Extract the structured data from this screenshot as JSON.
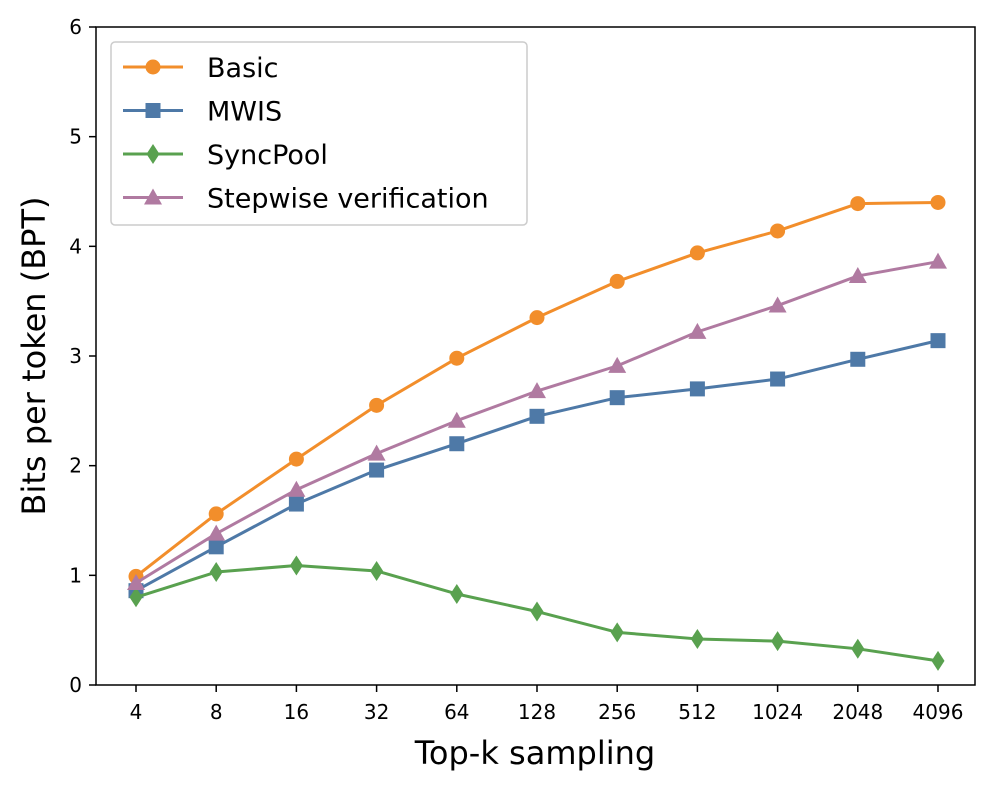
{
  "chart_data": {
    "type": "line",
    "title": "",
    "xlabel": "Top-k sampling",
    "ylabel": "Bits per token (BPT)",
    "categories": [
      "4",
      "8",
      "16",
      "32",
      "64",
      "128",
      "256",
      "512",
      "1024",
      "2048",
      "4096"
    ],
    "yticks": [
      "0",
      "1",
      "2",
      "3",
      "4",
      "5",
      "6"
    ],
    "ylim": [
      0,
      6
    ],
    "grid": false,
    "legend_position": "top-left",
    "series": [
      {
        "name": "Basic",
        "color": "#F28E2B",
        "marker": "circle",
        "values": [
          0.99,
          1.56,
          2.06,
          2.55,
          2.98,
          3.35,
          3.68,
          3.94,
          4.14,
          4.39,
          4.4
        ]
      },
      {
        "name": "MWIS",
        "color": "#4E79A7",
        "marker": "square",
        "values": [
          0.86,
          1.26,
          1.65,
          1.96,
          2.2,
          2.45,
          2.62,
          2.7,
          2.79,
          2.97,
          3.14
        ]
      },
      {
        "name": "SyncPool",
        "color": "#59A14F",
        "marker": "diamond",
        "values": [
          0.8,
          1.03,
          1.09,
          1.04,
          0.83,
          0.67,
          0.48,
          0.42,
          0.4,
          0.33,
          0.22
        ]
      },
      {
        "name": "Stepwise verification",
        "color": "#B07AA1",
        "marker": "triangle",
        "values": [
          0.93,
          1.38,
          1.78,
          2.11,
          2.41,
          2.68,
          2.91,
          3.22,
          3.46,
          3.73,
          3.86
        ]
      }
    ]
  }
}
